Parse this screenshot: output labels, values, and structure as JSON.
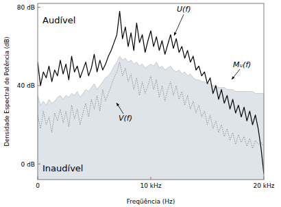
{
  "chart_data": {
    "type": "line",
    "x_label": "Freqüência (Hz)",
    "y_label": "Densidade Espectral de Potência (dB)",
    "annotations": [
      "Audível",
      "Inaudível"
    ],
    "xlim": [
      0,
      20000
    ],
    "xticks": [
      0,
      {
        "value": 10000,
        "label": "10 kHz"
      },
      {
        "value": 20000,
        "label": "20 kHz"
      }
    ],
    "ylim": [
      -8,
      82
    ],
    "yticks": [
      {
        "value": 0,
        "label": "0 dB"
      },
      {
        "value": 40,
        "label": "40 dB"
      },
      {
        "value": 80,
        "label": "80 dB"
      }
    ],
    "grid": false,
    "x": [
      0,
      250,
      500,
      750,
      1000,
      1250,
      1500,
      1750,
      2000,
      2250,
      2500,
      2750,
      3000,
      3250,
      3500,
      3750,
      4000,
      4250,
      4500,
      4750,
      5000,
      5250,
      5500,
      5750,
      6000,
      6250,
      6500,
      6750,
      7000,
      7250,
      7500,
      7750,
      8000,
      8250,
      8500,
      8750,
      9000,
      9250,
      9500,
      9750,
      10000,
      10250,
      10500,
      10750,
      11000,
      11250,
      11500,
      11750,
      12000,
      12250,
      12500,
      12750,
      13000,
      13250,
      13500,
      13750,
      14000,
      14250,
      14500,
      14750,
      15000,
      15250,
      15500,
      15750,
      16000,
      16250,
      16500,
      16750,
      17000,
      17250,
      17500,
      17750,
      18000,
      18250,
      18500,
      18750,
      19000,
      19250,
      19500,
      19750,
      20000
    ],
    "series": [
      {
        "name": "Mᵤ(f)",
        "type": "area",
        "color": "#dfe4e9",
        "values": [
          35,
          30,
          32,
          30,
          33,
          31,
          32,
          34,
          35,
          33,
          35,
          34,
          36,
          35,
          37,
          34,
          36,
          38,
          37,
          39,
          41,
          38,
          40,
          42,
          44,
          45,
          47,
          50,
          52,
          55,
          53,
          54,
          52,
          53,
          51,
          52,
          50,
          51,
          49,
          50,
          51,
          50,
          52,
          49,
          50,
          48,
          49,
          50,
          48,
          47,
          48,
          46,
          47,
          45,
          46,
          44,
          43,
          43,
          42,
          42,
          41,
          41,
          40,
          40,
          39,
          39,
          39,
          38,
          38,
          38,
          37,
          37,
          37,
          37,
          37,
          37,
          37,
          36,
          36,
          36,
          36
        ]
      },
      {
        "name": "V(f)",
        "type": "line",
        "color": "#8a8a8a",
        "line_style": "dotted",
        "values": [
          25,
          18,
          27,
          20,
          24,
          16,
          26,
          22,
          28,
          21,
          27,
          19,
          30,
          23,
          28,
          20,
          26,
          31,
          24,
          33,
          28,
          35,
          27,
          38,
          32,
          36,
          40,
          44,
          47,
          52,
          45,
          49,
          42,
          46,
          38,
          44,
          35,
          42,
          36,
          40,
          45,
          38,
          43,
          34,
          40,
          32,
          38,
          42,
          35,
          40,
          33,
          37,
          30,
          35,
          28,
          32,
          26,
          30,
          24,
          27,
          20,
          25,
          18,
          22,
          16,
          20,
          14,
          18,
          12,
          16,
          10,
          15,
          11,
          14,
          9,
          13,
          8,
          12,
          10,
          11,
          9
        ]
      },
      {
        "name": "U(f)",
        "type": "line",
        "color": "#000000",
        "line_style": "solid",
        "values": [
          52,
          40,
          47,
          44,
          50,
          42,
          48,
          45,
          53,
          46,
          51,
          43,
          55,
          47,
          50,
          44,
          48,
          52,
          45,
          49,
          56,
          47,
          53,
          48,
          51,
          55,
          58,
          62,
          66,
          78,
          64,
          70,
          60,
          67,
          58,
          72,
          62,
          66,
          57,
          63,
          68,
          60,
          65,
          58,
          63,
          56,
          61,
          66,
          59,
          64,
          57,
          60,
          54,
          58,
          52,
          55,
          48,
          50,
          45,
          47,
          41,
          44,
          36,
          40,
          33,
          38,
          31,
          35,
          28,
          33,
          26,
          30,
          24,
          29,
          22,
          27,
          20,
          25,
          18,
          8,
          -5
        ]
      }
    ]
  }
}
